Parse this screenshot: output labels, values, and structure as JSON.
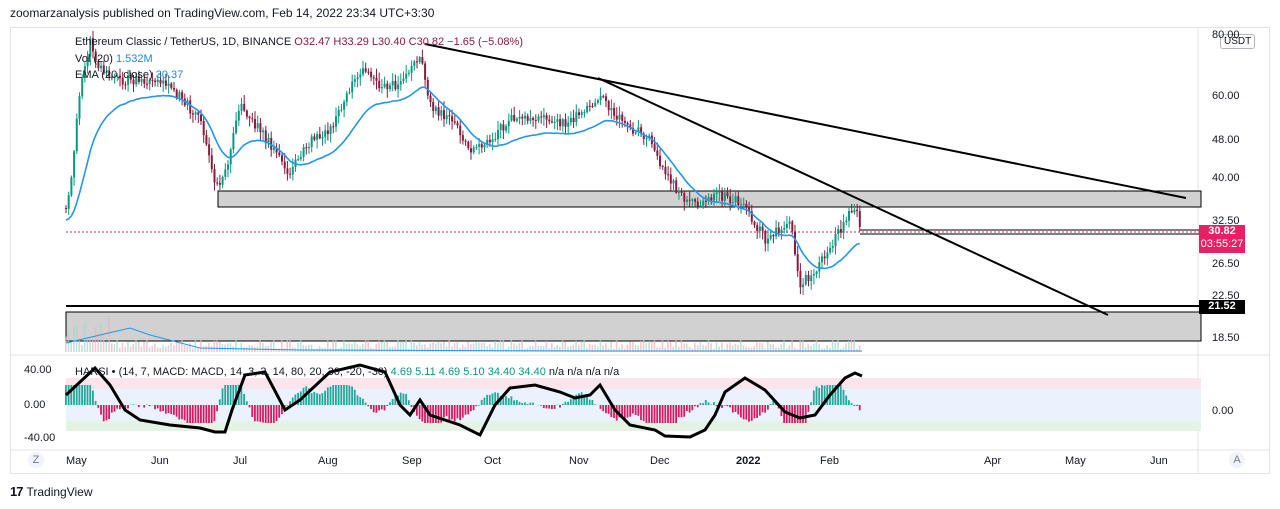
{
  "header": {
    "published": "zoomarzanalysis published on TradingView.com, Feb 14, 2022 23:34 UTC+3:30"
  },
  "legend": {
    "symbol": "Ethereum Classic / TetherUS, 1D, BINANCE",
    "ohlc": "O32.47 H33.29 L30.40 C30.82 −1.65 (−5.08%)",
    "vol_label": "Vol (20)",
    "vol_value": "1.532M",
    "ema_label": "EMA (20, close)",
    "ema_value": "30.37",
    "osc_label": "HARSI • (14, 7, MACD: MACD, 14, 3, 3, 14, 80, 20, 30, -20, -30)",
    "osc_values": "4.69 5.11 4.69 5.10 34.40 34.40",
    "osc_na": "n/a n/a n/a n/a"
  },
  "currency_badge": "USDT",
  "price_axis": [
    "80.00",
    "60.00",
    "48.00",
    "40.00",
    "32.50",
    "26.50",
    "22.50",
    "18.50"
  ],
  "current_price": {
    "value": "30.82",
    "countdown": "03:55:27"
  },
  "level_tag": "21.52",
  "osc_axis_left": [
    "40.00",
    "0.00",
    "-40.00"
  ],
  "osc_axis_right": "0.00",
  "time_axis": [
    "May",
    "Jun",
    "Jul",
    "Aug",
    "Sep",
    "Oct",
    "Nov",
    "Dec",
    "2022",
    "Feb",
    "Apr",
    "May",
    "Jun"
  ],
  "corner_left": "Z",
  "corner_right": "A",
  "footer": "TradingView",
  "colors": {
    "up": "#089981",
    "down": "#8b1a3c",
    "ema": "#2196f3",
    "zone": "#d1d1d1",
    "price_tag": "#e91e63"
  },
  "chart_data": {
    "type": "candlestick",
    "title": "Ethereum Classic / TetherUS, 1D, BINANCE",
    "ylim": [
      16,
      85
    ],
    "y_scale": "log",
    "price_path": [
      {
        "t": "May",
        "p": 35
      },
      {
        "t": "May",
        "p": 80
      },
      {
        "t": "May",
        "p": 110
      },
      {
        "t": "Jun",
        "p": 70
      },
      {
        "t": "Jun",
        "p": 60
      },
      {
        "t": "Jun",
        "p": 55
      },
      {
        "t": "Jul",
        "p": 38
      },
      {
        "t": "Jul",
        "p": 52
      },
      {
        "t": "Aug",
        "p": 45
      },
      {
        "t": "Aug",
        "p": 48
      },
      {
        "t": "Aug",
        "p": 60
      },
      {
        "t": "Aug",
        "p": 72
      },
      {
        "t": "Sep",
        "p": 65
      },
      {
        "t": "Sep",
        "p": 72
      },
      {
        "t": "Sep",
        "p": 60
      },
      {
        "t": "Sep",
        "p": 48
      },
      {
        "t": "Oct",
        "p": 47
      },
      {
        "t": "Oct",
        "p": 55
      },
      {
        "t": "Oct",
        "p": 54
      },
      {
        "t": "Nov",
        "p": 55
      },
      {
        "t": "Nov",
        "p": 60
      },
      {
        "t": "Nov",
        "p": 50
      },
      {
        "t": "Dec",
        "p": 46
      },
      {
        "t": "Dec",
        "p": 35
      },
      {
        "t": "Dec",
        "p": 34
      },
      {
        "t": "2022",
        "p": 37
      },
      {
        "t": "2022",
        "p": 32
      },
      {
        "t": "2022",
        "p": 28
      },
      {
        "t": "2022",
        "p": 33
      },
      {
        "t": "2022",
        "p": 23
      },
      {
        "t": "Feb",
        "p": 28
      },
      {
        "t": "Feb",
        "p": 35
      },
      {
        "t": "Feb",
        "p": 30.82
      }
    ],
    "zones": [
      {
        "low": 33.5,
        "high": 38.5
      },
      {
        "low": 18.5,
        "high": 21.2
      }
    ],
    "horizontal_lines": [
      21.52,
      30.82
    ],
    "trendlines": [
      {
        "from": {
          "t": "Sep",
          "p": 77
        },
        "to": {
          "t": "Jun",
          "p": 36.5
        }
      },
      {
        "from": {
          "t": "Nov",
          "p": 65
        },
        "to": {
          "t": "May",
          "p": 20.8
        }
      }
    ]
  }
}
